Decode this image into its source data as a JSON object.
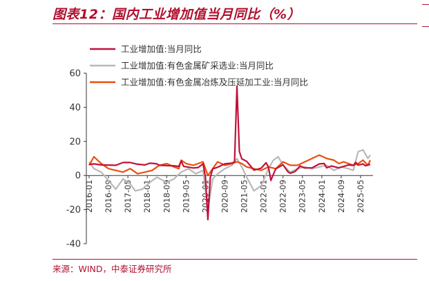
{
  "figure": {
    "title": "图表12：国内工业增加值当月同比（%）",
    "source": "来源：WIND，中泰证券研究所"
  },
  "chart_data": {
    "type": "line",
    "ylim": [
      -40,
      60
    ],
    "yticks": [
      -40,
      -20,
      0,
      20,
      40,
      60
    ],
    "xlim": [
      "2016-01",
      "2025-09"
    ],
    "x_tick_labels": [
      "2016-01",
      "2016-09",
      "2017-05",
      "2018-01",
      "2018-09",
      "2019-05",
      "2020-01",
      "2020-09",
      "2021-05",
      "2022-01",
      "2022-09",
      "2023-05",
      "2024-01",
      "2024-09",
      "2025-05"
    ],
    "grid": false,
    "legend_position": "top-left",
    "series": [
      {
        "name": "工业增加值:当月同比",
        "color": "#c0103a",
        "points": [
          [
            "2016-01",
            6.5
          ],
          [
            "2016-03",
            6.8
          ],
          [
            "2016-06",
            6.2
          ],
          [
            "2016-09",
            6.1
          ],
          [
            "2016-12",
            6.0
          ],
          [
            "2017-03",
            7.6
          ],
          [
            "2017-06",
            7.6
          ],
          [
            "2017-09",
            6.6
          ],
          [
            "2017-12",
            6.2
          ],
          [
            "2018-02",
            7.2
          ],
          [
            "2018-04",
            7.0
          ],
          [
            "2018-05",
            6.8
          ],
          [
            "2018-06",
            6.0
          ],
          [
            "2018-09",
            5.8
          ],
          [
            "2018-12",
            5.7
          ],
          [
            "2019-02",
            5.3
          ],
          [
            "2019-03",
            8.5
          ],
          [
            "2019-04",
            5.4
          ],
          [
            "2019-08",
            4.4
          ],
          [
            "2019-10",
            4.7
          ],
          [
            "2019-12",
            6.9
          ],
          [
            "2020-01",
            -1.0
          ],
          [
            "2020-02",
            -25.9
          ],
          [
            "2020-03",
            -1.1
          ],
          [
            "2020-04",
            3.9
          ],
          [
            "2020-06",
            4.8
          ],
          [
            "2020-09",
            6.9
          ],
          [
            "2020-12",
            7.3
          ],
          [
            "2021-01",
            8.0
          ],
          [
            "2021-02",
            52.3
          ],
          [
            "2021-03",
            14.1
          ],
          [
            "2021-04",
            9.8
          ],
          [
            "2021-06",
            8.3
          ],
          [
            "2021-09",
            3.1
          ],
          [
            "2021-12",
            4.3
          ],
          [
            "2022-02",
            7.5
          ],
          [
            "2022-03",
            5.0
          ],
          [
            "2022-04",
            -2.9
          ],
          [
            "2022-05",
            0.7
          ],
          [
            "2022-06",
            3.9
          ],
          [
            "2022-09",
            6.3
          ],
          [
            "2022-11",
            2.2
          ],
          [
            "2022-12",
            1.3
          ],
          [
            "2023-02",
            2.4
          ],
          [
            "2023-03",
            3.9
          ],
          [
            "2023-04",
            5.6
          ],
          [
            "2023-06",
            4.4
          ],
          [
            "2023-09",
            4.5
          ],
          [
            "2023-12",
            6.8
          ],
          [
            "2024-02",
            7.0
          ],
          [
            "2024-03",
            4.5
          ],
          [
            "2024-05",
            5.6
          ],
          [
            "2024-08",
            4.5
          ],
          [
            "2024-10",
            5.3
          ],
          [
            "2024-12",
            6.2
          ],
          [
            "2025-02",
            5.9
          ],
          [
            "2025-03",
            7.7
          ],
          [
            "2025-04",
            6.1
          ],
          [
            "2025-06",
            6.8
          ],
          [
            "2025-07",
            5.7
          ],
          [
            "2025-09",
            6.5
          ]
        ]
      },
      {
        "name": "工业增加值:有色金属矿采选业:当月同比",
        "color": "#b8b8b8",
        "points": [
          [
            "2016-01",
            8
          ],
          [
            "2016-03",
            4
          ],
          [
            "2016-06",
            2
          ],
          [
            "2016-09",
            -3
          ],
          [
            "2016-12",
            -8
          ],
          [
            "2017-03",
            -2
          ],
          [
            "2017-06",
            -5
          ],
          [
            "2017-08",
            -9
          ],
          [
            "2017-11",
            -8
          ],
          [
            "2018-02",
            -4
          ],
          [
            "2018-05",
            -1
          ],
          [
            "2018-09",
            -4
          ],
          [
            "2018-12",
            -2
          ],
          [
            "2019-03",
            2
          ],
          [
            "2019-06",
            4
          ],
          [
            "2019-09",
            1
          ],
          [
            "2019-12",
            3
          ],
          [
            "2020-02",
            -20
          ],
          [
            "2020-04",
            -2
          ],
          [
            "2020-06",
            1
          ],
          [
            "2020-09",
            4
          ],
          [
            "2020-12",
            6
          ],
          [
            "2021-02",
            10
          ],
          [
            "2021-04",
            5
          ],
          [
            "2021-06",
            -1
          ],
          [
            "2021-09",
            -9
          ],
          [
            "2021-12",
            -6
          ],
          [
            "2022-03",
            4
          ],
          [
            "2022-05",
            9
          ],
          [
            "2022-07",
            11
          ],
          [
            "2022-09",
            6
          ],
          [
            "2022-12",
            2
          ],
          [
            "2023-03",
            4
          ],
          [
            "2023-06",
            5
          ],
          [
            "2023-09",
            4
          ],
          [
            "2023-12",
            5
          ],
          [
            "2024-03",
            6
          ],
          [
            "2024-06",
            3
          ],
          [
            "2024-09",
            5
          ],
          [
            "2024-12",
            4
          ],
          [
            "2025-02",
            3
          ],
          [
            "2025-04",
            14
          ],
          [
            "2025-06",
            15
          ],
          [
            "2025-08",
            10
          ],
          [
            "2025-09",
            12
          ]
        ]
      },
      {
        "name": "工业增加值:有色金属冶炼及压延加工业:当月同比",
        "color": "#e8500e",
        "points": [
          [
            "2016-01",
            6
          ],
          [
            "2016-03",
            11
          ],
          [
            "2016-06",
            7
          ],
          [
            "2016-09",
            4
          ],
          [
            "2016-12",
            3
          ],
          [
            "2017-03",
            2
          ],
          [
            "2017-06",
            4
          ],
          [
            "2017-09",
            1
          ],
          [
            "2017-12",
            2
          ],
          [
            "2018-03",
            3
          ],
          [
            "2018-06",
            6
          ],
          [
            "2018-09",
            7
          ],
          [
            "2018-12",
            5
          ],
          [
            "2019-02",
            4
          ],
          [
            "2019-03",
            9
          ],
          [
            "2019-05",
            7
          ],
          [
            "2019-08",
            6
          ],
          [
            "2019-12",
            8
          ],
          [
            "2020-02",
            0
          ],
          [
            "2020-04",
            4
          ],
          [
            "2020-06",
            8
          ],
          [
            "2020-09",
            6
          ],
          [
            "2020-12",
            7
          ],
          [
            "2021-02",
            8
          ],
          [
            "2021-04",
            7
          ],
          [
            "2021-06",
            5
          ],
          [
            "2021-09",
            4
          ],
          [
            "2021-12",
            3
          ],
          [
            "2022-03",
            5
          ],
          [
            "2022-06",
            4
          ],
          [
            "2022-09",
            8
          ],
          [
            "2022-12",
            6
          ],
          [
            "2023-03",
            6
          ],
          [
            "2023-06",
            8
          ],
          [
            "2023-09",
            10
          ],
          [
            "2023-12",
            12
          ],
          [
            "2024-03",
            10
          ],
          [
            "2024-06",
            9
          ],
          [
            "2024-08",
            7
          ],
          [
            "2024-10",
            8
          ],
          [
            "2024-12",
            7
          ],
          [
            "2025-02",
            6
          ],
          [
            "2025-04",
            7
          ],
          [
            "2025-06",
            9
          ],
          [
            "2025-08",
            6
          ],
          [
            "2025-09",
            9
          ]
        ]
      }
    ]
  }
}
